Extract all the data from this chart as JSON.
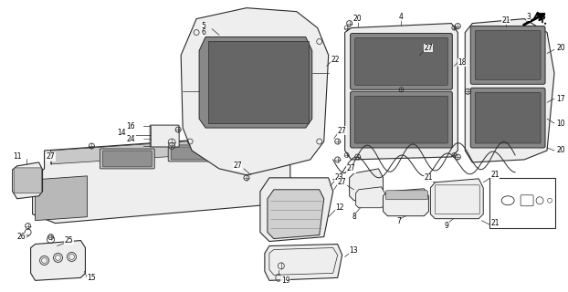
{
  "bg_color": "#ffffff",
  "fig_width": 6.22,
  "fig_height": 3.2,
  "dpi": 100,
  "line_color": "#2a2a2a",
  "label_fontsize": 5.5,
  "gray_fill": "#d8d8d8",
  "light_gray": "#eeeeee"
}
